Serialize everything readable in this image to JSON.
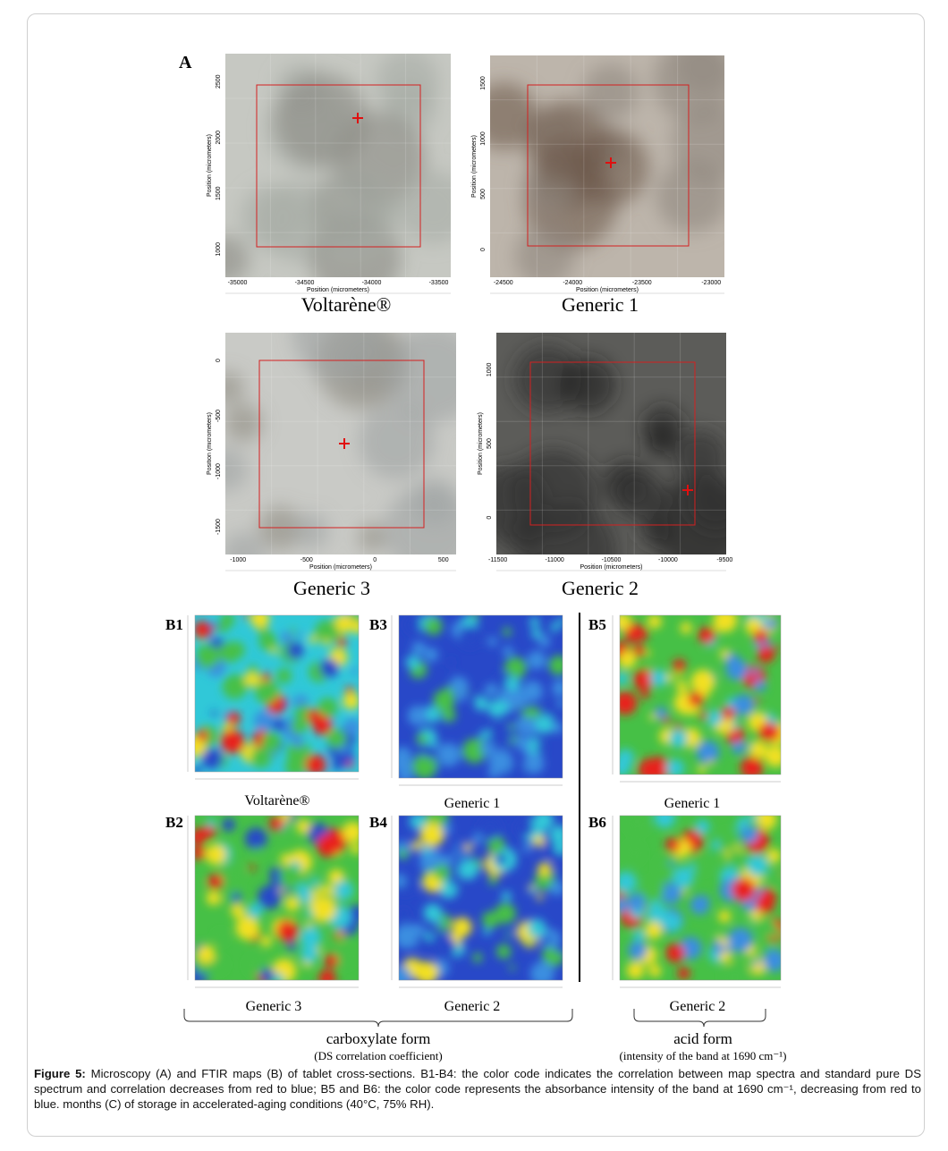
{
  "panel_a": {
    "label": "A",
    "images": [
      {
        "caption": "Voltarène®",
        "xlabel": "Position (micrometers)",
        "ylabel": "Position (micrometers)",
        "xticks": [
          "-35000",
          "-34500",
          "-34000",
          "-33500"
        ],
        "yticks": [
          "2500",
          "2000",
          "1500",
          "1000"
        ]
      },
      {
        "caption": "Generic 1",
        "xlabel": "Position (micrometers)",
        "ylabel": "Position (micrometers)",
        "xticks": [
          "-24500",
          "-24000",
          "-23500",
          "-23000"
        ],
        "yticks": [
          "1500",
          "1000",
          "500",
          "0"
        ]
      },
      {
        "caption": "Generic 3",
        "xlabel": "Position (micrometers)",
        "ylabel": "Position (micrometers)",
        "xticks": [
          "-1000",
          "-500",
          "0",
          "500"
        ],
        "yticks": [
          "0",
          "-500",
          "-1000",
          "-1500"
        ]
      },
      {
        "caption": "Generic 2",
        "xlabel": "Position (micrometers)",
        "ylabel": "Position (micrometers)",
        "xticks": [
          "-11500",
          "-11000",
          "-10500",
          "-10000",
          "-9500"
        ],
        "yticks": [
          "1000",
          "500",
          "0"
        ]
      }
    ]
  },
  "panel_b": {
    "maps": [
      {
        "label": "B1",
        "caption": "Voltarène®"
      },
      {
        "label": "B3",
        "caption": "Generic 1"
      },
      {
        "label": "B5",
        "caption": "Generic 1"
      },
      {
        "label": "B2",
        "caption": "Generic 3"
      },
      {
        "label": "B4",
        "caption": "Generic 2"
      },
      {
        "label": "B6",
        "caption": "Generic 2"
      }
    ],
    "groups": [
      {
        "title": "carboxylate form",
        "subtitle": "(DS correlation coefficient)"
      },
      {
        "title": "acid form",
        "subtitle": "(intensity  of the band at 1690 cm⁻¹)"
      }
    ]
  },
  "caption": {
    "figure_label": "Figure 5:",
    "text": "Microscopy (A) and FTIR maps (B) of tablet cross-sections. B1-B4: the color code indicates the correlation between map spectra and standard pure DS spectrum and correlation decreases from red to blue; B5 and B6: the color code represents the absorbance intensity of the band at 1690 cm⁻¹, decreasing from red to blue. months (C) of storage in accelerated-aging conditions (40°C, 75% RH)."
  }
}
